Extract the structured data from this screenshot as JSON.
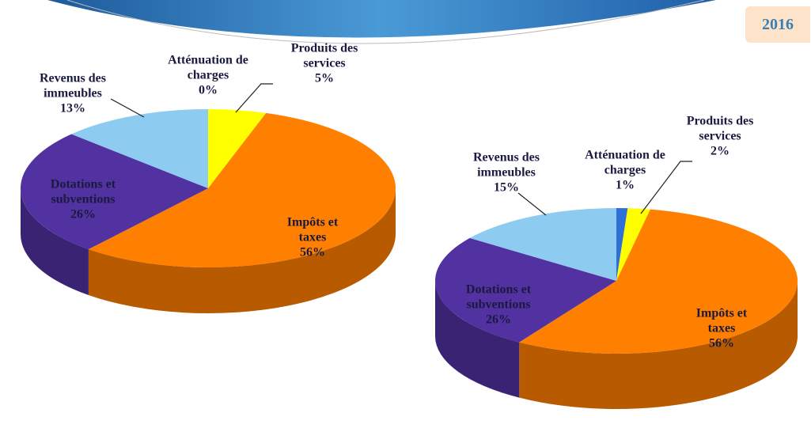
{
  "year": "2016",
  "chart_data": [
    {
      "type": "pie",
      "categories": [
        "Atténuation de charges",
        "Produits des services",
        "Impôts et taxes",
        "Dotations et subventions",
        "Revenus des immeubles"
      ],
      "values": [
        0,
        5,
        56,
        26,
        13
      ],
      "value_labels": [
        "0%",
        "5%",
        "56%",
        "26%",
        "13%"
      ],
      "colors": [
        "#2f6fd8",
        "#ffff00",
        "#ff7f00",
        "#5231a0",
        "#8ecbf0"
      ]
    },
    {
      "type": "pie",
      "categories": [
        "Atténuation de charges",
        "Produits des services",
        "Impôts et taxes",
        "Dotations et subventions",
        "Revenus des immeubles"
      ],
      "values": [
        1,
        2,
        56,
        26,
        15
      ],
      "value_labels": [
        "1%",
        "2%",
        "56%",
        "26%",
        "15%"
      ],
      "colors": [
        "#2f6fd8",
        "#ffff00",
        "#ff7f00",
        "#5231a0",
        "#8ecbf0"
      ]
    }
  ]
}
